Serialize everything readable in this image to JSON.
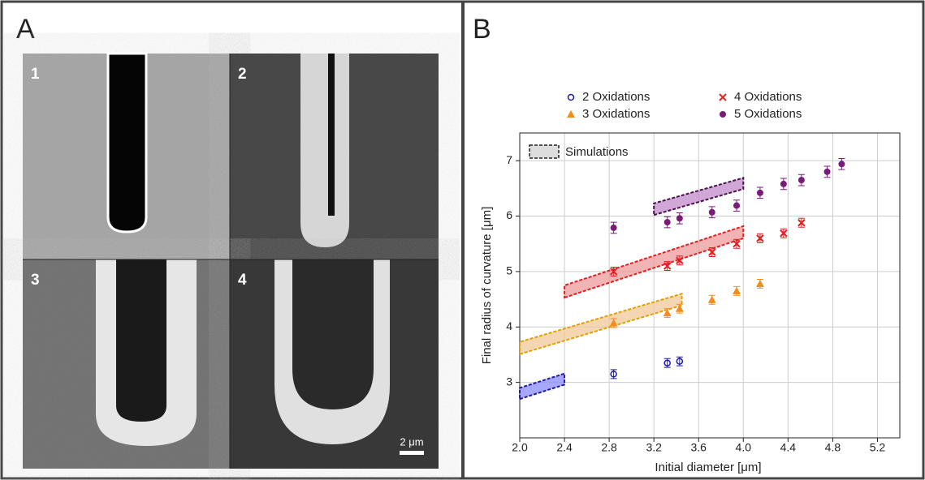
{
  "figure": {
    "panel_a": "A",
    "panel_b": "B",
    "images": [
      "1",
      "2",
      "3",
      "4"
    ],
    "scale_bar": "2 μm"
  },
  "chart_data": {
    "type": "scatter",
    "xlabel": "Initial diameter [μm]",
    "ylabel": "Final radius of curvature [μm]",
    "xlim": [
      2.0,
      5.4
    ],
    "ylim": [
      2.0,
      7.5
    ],
    "xticks": [
      {
        "value": 2.0,
        "label": "2.0"
      },
      2.4,
      2.8,
      3.2,
      3.6,
      {
        "value": 4.0,
        "label": "4.0"
      },
      4.4,
      4.8,
      5.2
    ],
    "yticks": [
      3,
      4,
      5,
      6,
      7
    ],
    "grid": true,
    "series": [
      {
        "name": "2 Oxidations",
        "color": "#1c1c9c",
        "marker": "circle-open",
        "x": [
          2.84,
          3.32,
          3.43
        ],
        "values": [
          3.15,
          3.35,
          3.38
        ],
        "errors": [
          0.08,
          0.08,
          0.08
        ]
      },
      {
        "name": "3 Oxidations",
        "color": "#f28c1a",
        "marker": "triangle",
        "x": [
          2.84,
          3.32,
          3.43,
          3.72,
          3.94,
          4.15
        ],
        "values": [
          4.07,
          4.25,
          4.33,
          4.49,
          4.65,
          4.78
        ],
        "errors": [
          0.08,
          0.08,
          0.08,
          0.08,
          0.08,
          0.08
        ]
      },
      {
        "name": "4 Oxidations",
        "color": "#e02020",
        "marker": "cross",
        "x": [
          2.84,
          3.32,
          3.43,
          3.72,
          3.94,
          4.15,
          4.36,
          4.52
        ],
        "values": [
          5.0,
          5.1,
          5.2,
          5.35,
          5.5,
          5.6,
          5.69,
          5.88
        ],
        "errors": [
          0.08,
          0.08,
          0.08,
          0.08,
          0.08,
          0.08,
          0.08,
          0.08
        ]
      },
      {
        "name": "5 Oxidations",
        "color": "#7a1a7a",
        "marker": "circle",
        "x": [
          2.84,
          3.32,
          3.43,
          3.72,
          3.94,
          4.15,
          4.36,
          4.52,
          4.75,
          4.88
        ],
        "values": [
          5.79,
          5.89,
          5.96,
          6.07,
          6.19,
          6.42,
          6.58,
          6.65,
          6.8,
          6.94
        ],
        "errors": [
          0.1,
          0.1,
          0.1,
          0.1,
          0.1,
          0.1,
          0.1,
          0.1,
          0.1,
          0.1
        ]
      }
    ],
    "bands_label": "Simulations",
    "bands": [
      {
        "color": "#1c1c9c",
        "fill": "#8a8aff",
        "x": [
          2.0,
          2.4
        ],
        "lower": [
          2.7,
          2.96
        ],
        "upper": [
          2.9,
          3.16
        ]
      },
      {
        "color": "#e0a000",
        "fill": "#f0c89a",
        "x": [
          2.0,
          3.45
        ],
        "lower": [
          3.51,
          4.39
        ],
        "upper": [
          3.73,
          4.6
        ]
      },
      {
        "color": "#e02020",
        "fill": "#ec9a9a",
        "x": [
          2.4,
          4.0
        ],
        "lower": [
          4.53,
          5.6
        ],
        "upper": [
          4.75,
          5.82
        ]
      },
      {
        "color": "#4a104a",
        "fill": "#c08ac8",
        "x": [
          3.2,
          4.0
        ],
        "lower": [
          6.02,
          6.49
        ],
        "upper": [
          6.23,
          6.69
        ]
      }
    ]
  }
}
